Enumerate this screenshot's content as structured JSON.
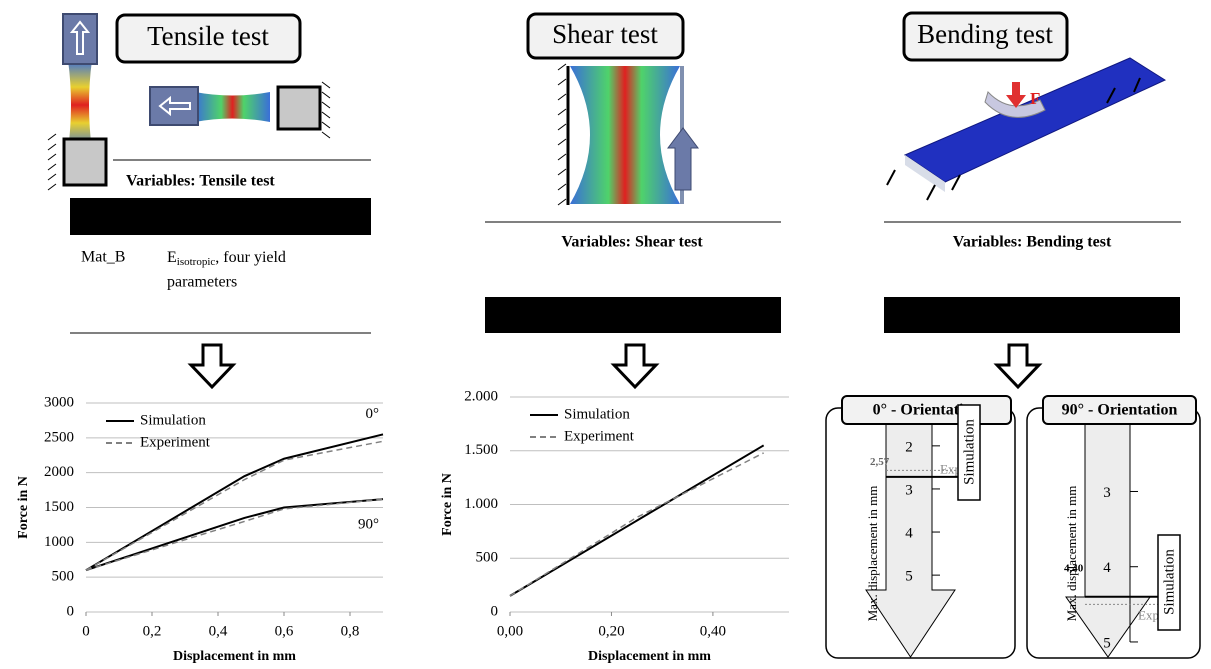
{
  "tensile": {
    "title": "Tensile test",
    "variables": "Variables: Tensile test",
    "material": "Mat_B",
    "desc_main": "E",
    "desc_sub": "isotropic",
    "desc_rest": ", four yield",
    "desc_line2": "parameters"
  },
  "shear": {
    "title": "Shear test",
    "variables": "Variables: Shear test"
  },
  "bending": {
    "title": "Bending test",
    "variables": "Variables: Bending test",
    "force_label": "F"
  },
  "tensile_chart": {
    "type": "line",
    "x": [
      0,
      0.48,
      0.6,
      0.9
    ],
    "xlim": [
      0,
      0.9
    ],
    "ylim": [
      0,
      3000
    ],
    "xticks": [
      0,
      {
        "value": 0.2,
        "label": "0,2"
      },
      {
        "value": 0.4,
        "label": "0,4"
      },
      {
        "value": 0.6,
        "label": "0,6"
      },
      {
        "value": 0.8,
        "label": "0,8"
      }
    ],
    "yticks": [
      0,
      500,
      1000,
      1500,
      2000,
      2500,
      3000
    ],
    "xlabel": "Displacement in mm",
    "ylabel": "Force in N",
    "grid": true,
    "annotations": [
      "0°",
      "90°"
    ],
    "series": [
      {
        "name": "Simulation",
        "color": "#000000",
        "dash": false,
        "curves": [
          [
            600,
            1950,
            2200,
            2550
          ],
          [
            600,
            1350,
            1500,
            1620
          ]
        ]
      },
      {
        "name": "Experiment",
        "color": "#808080",
        "dash": true,
        "curves": [
          [
            600,
            1900,
            2180,
            2450
          ],
          [
            600,
            1300,
            1480,
            1620
          ]
        ]
      }
    ]
  },
  "shear_chart": {
    "type": "line",
    "x": [
      0,
      0.25,
      0.5
    ],
    "xlim": [
      0,
      0.55
    ],
    "ylim": [
      0,
      2000
    ],
    "xticks": [
      {
        "value": 0,
        "label": "0,00"
      },
      {
        "value": 0.2,
        "label": "0,20"
      },
      {
        "value": 0.4,
        "label": "0,40"
      }
    ],
    "yticks": [
      0,
      500,
      {
        "value": 1000,
        "label": "1.000"
      },
      {
        "value": 1500,
        "label": "1.500"
      },
      {
        "value": 2000,
        "label": "2.000"
      }
    ],
    "xlabel": "Displacement in mm",
    "ylabel": "Force in N",
    "grid": true,
    "series": [
      {
        "name": "Simulation",
        "color": "#000000",
        "dash": false,
        "curves": [
          [
            150,
            850,
            1550
          ]
        ]
      },
      {
        "name": "Experiment",
        "color": "#808080",
        "dash": true,
        "curves": [
          [
            150,
            880,
            1480
          ]
        ]
      }
    ]
  },
  "bending_chart": {
    "axis_label": "Max. displacement in mm",
    "exp_label": "Exp.",
    "sim_label": "Simulation",
    "panels": [
      {
        "title": "0° - Orientation",
        "ylim": [
          1.4,
          6.9
        ],
        "yticks": [
          2,
          3,
          4,
          5
        ],
        "experiment": 2.57,
        "experiment_label": "2,57",
        "simulation": 2.72
      },
      {
        "title": "90° - Orientation",
        "ylim": [
          2.05,
          5.2
        ],
        "yticks": [
          3,
          4,
          5
        ],
        "experiment": 4.5,
        "simulation": 4.4,
        "simulation_label": "4,40"
      }
    ]
  }
}
